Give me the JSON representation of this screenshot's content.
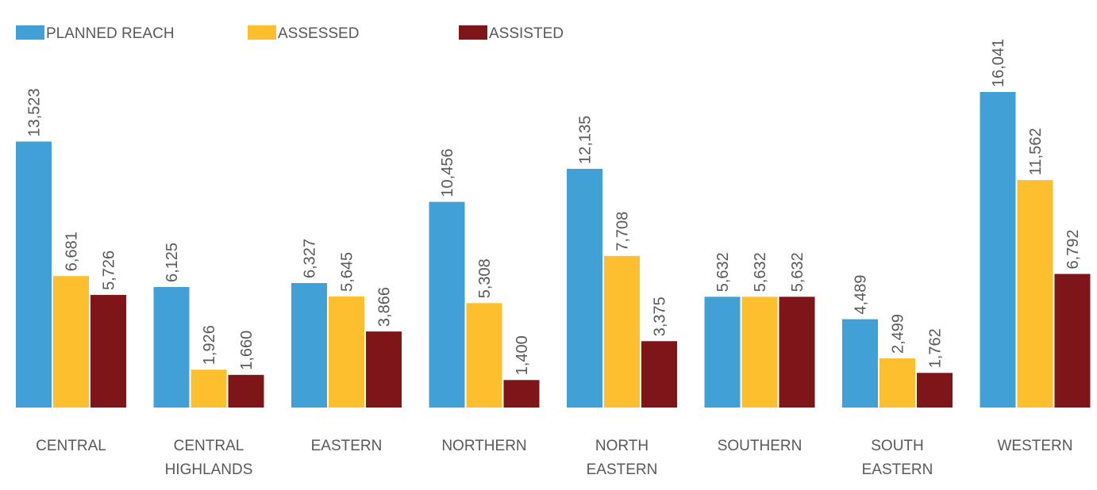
{
  "chart_data": {
    "type": "bar",
    "title": "",
    "xlabel": "",
    "ylabel": "",
    "ylim": [
      0,
      16041
    ],
    "grid": false,
    "legend_position": "top-left",
    "categories": [
      [
        "CENTRAL"
      ],
      [
        "CENTRAL",
        "HIGHLANDS"
      ],
      [
        "EASTERN"
      ],
      [
        "NORTHERN"
      ],
      [
        "NORTH",
        "EASTERN"
      ],
      [
        "SOUTHERN"
      ],
      [
        "SOUTH",
        "EASTERN"
      ],
      [
        "WESTERN"
      ]
    ],
    "series": [
      {
        "name": "PLANNED REACH",
        "color": "#41A0D6",
        "values": [
          13523,
          6125,
          6327,
          10456,
          12135,
          5632,
          4489,
          16041
        ],
        "labels": [
          "13,523",
          "6,125",
          "6,327",
          "10,456",
          "12,135",
          "5,632",
          "4,489",
          "16,041"
        ]
      },
      {
        "name": "ASSESSED",
        "color": "#FDBF2D",
        "values": [
          6681,
          1926,
          5645,
          5308,
          7708,
          5632,
          2499,
          11562
        ],
        "labels": [
          "6,681",
          "1,926",
          "5,645",
          "5,308",
          "7,708",
          "5,632",
          "2,499",
          "11,562"
        ]
      },
      {
        "name": "ASSISTED",
        "color": "#7E1519",
        "values": [
          5726,
          1660,
          3866,
          1400,
          3375,
          5632,
          1762,
          6792
        ],
        "labels": [
          "5,726",
          "1,660",
          "3,866",
          "1,400",
          "3,375",
          "5,632",
          "1,762",
          "6,792"
        ]
      }
    ]
  }
}
